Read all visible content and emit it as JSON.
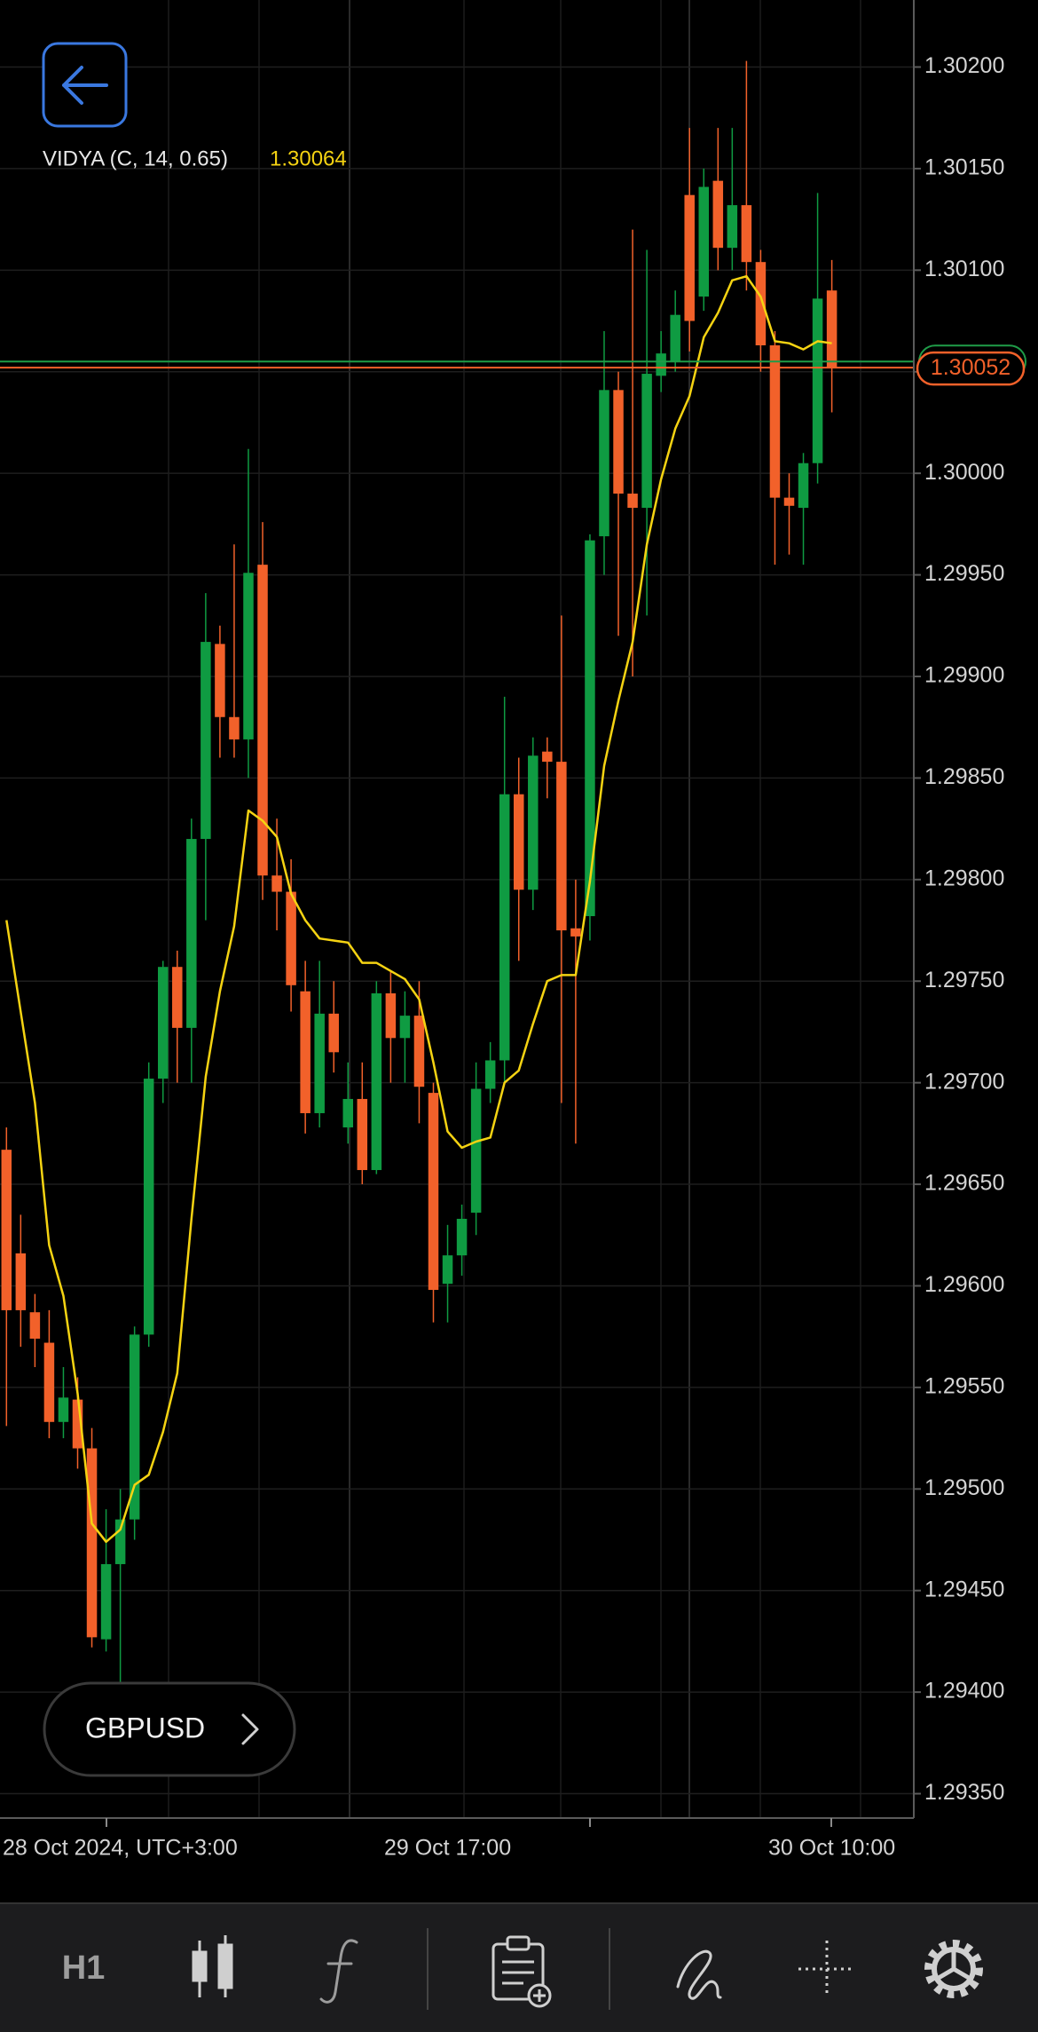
{
  "header": {
    "indicator_value": "1.30064"
  },
  "symbol_button": {
    "label": "GBPUSD"
  },
  "toolbar": {
    "timeframe": "H1"
  },
  "chart_data": {
    "type": "candlestick",
    "categories": [
      "28 Oct 2024, UTC+3:00",
      null,
      null,
      null,
      null,
      null,
      null,
      null,
      null,
      null,
      null,
      null,
      null,
      null,
      null,
      null,
      null,
      null,
      null,
      null,
      null,
      null,
      null,
      null,
      null,
      null,
      null,
      null,
      null,
      null,
      null,
      "29 Oct 17:00",
      null,
      null,
      null,
      null,
      null,
      null,
      null,
      null,
      null,
      null,
      null,
      null,
      null,
      null,
      null,
      null,
      null,
      null,
      null,
      null,
      null,
      null,
      null,
      null,
      null,
      null,
      "30 Oct 10:00"
    ],
    "open": [
      1.29667,
      1.29616,
      1.29587,
      1.29572,
      1.29533,
      1.29544,
      1.2952,
      1.29426,
      1.29463,
      1.29485,
      1.29576,
      1.29702,
      1.29757,
      1.29727,
      1.2982,
      1.29916,
      1.2988,
      1.29869,
      1.29955,
      1.29802,
      1.29794,
      1.29745,
      1.29685,
      1.29734,
      1.29678,
      1.29692,
      1.29657,
      1.29744,
      1.29722,
      1.29733,
      1.29695,
      1.29601,
      1.29615,
      1.29636,
      1.29697,
      1.29711,
      1.29842,
      1.29795,
      1.29863,
      1.29858,
      1.29776,
      1.29782,
      1.29969,
      1.30041,
      1.2999,
      1.29983,
      1.30048,
      1.30055,
      1.30137,
      1.30087,
      1.30144,
      1.30111,
      1.30132,
      1.30104,
      1.30063,
      1.29988,
      1.29983,
      1.30005,
      1.3009
    ],
    "high": [
      1.29678,
      1.29635,
      1.29596,
      1.29588,
      1.2956,
      1.29555,
      1.2953,
      1.2949,
      1.295,
      1.2958,
      1.2971,
      1.2976,
      1.29765,
      1.2983,
      1.29941,
      1.29925,
      1.29965,
      1.30012,
      1.29976,
      1.2983,
      1.2981,
      1.2976,
      1.2976,
      1.2975,
      1.2971,
      1.2971,
      1.2975,
      1.29755,
      1.29745,
      1.2975,
      1.297,
      1.2963,
      1.2964,
      1.2971,
      1.2972,
      1.2989,
      1.2986,
      1.2987,
      1.2987,
      1.2993,
      1.298,
      1.2997,
      1.3007,
      1.3005,
      1.3012,
      1.3011,
      1.3007,
      1.3009,
      1.3017,
      1.3015,
      1.3017,
      1.3017,
      1.30203,
      1.3011,
      1.3007,
      1.3,
      1.3001,
      1.30138,
      1.30105
    ],
    "low": [
      1.29531,
      1.2957,
      1.2956,
      1.29525,
      1.29525,
      1.2951,
      1.29422,
      1.2942,
      1.29395,
      1.29475,
      1.2957,
      1.2969,
      1.297,
      1.297,
      1.2978,
      1.2986,
      1.2986,
      1.2985,
      1.2979,
      1.29775,
      1.29735,
      1.29675,
      1.29678,
      1.29705,
      1.2967,
      1.2965,
      1.29655,
      1.297,
      1.297,
      1.2968,
      1.29582,
      1.29582,
      1.29605,
      1.29625,
      1.2969,
      1.297,
      1.2976,
      1.29785,
      1.2984,
      1.2969,
      1.2967,
      1.2977,
      1.2995,
      1.2992,
      1.299,
      1.2993,
      1.3004,
      1.3005,
      1.3006,
      1.3008,
      1.301,
      1.301,
      1.3009,
      1.3005,
      1.29955,
      1.2996,
      1.29955,
      1.29995,
      1.3003
    ],
    "close": [
      1.29588,
      1.29588,
      1.29574,
      1.29533,
      1.29545,
      1.2952,
      1.29427,
      1.29463,
      1.29485,
      1.29576,
      1.29702,
      1.29757,
      1.29727,
      1.2982,
      1.29917,
      1.2988,
      1.29869,
      1.29951,
      1.29802,
      1.29794,
      1.29748,
      1.29685,
      1.29734,
      1.29715,
      1.29692,
      1.29657,
      1.29744,
      1.29722,
      1.29733,
      1.29698,
      1.29598,
      1.29615,
      1.29633,
      1.29697,
      1.29711,
      1.29842,
      1.29795,
      1.29861,
      1.29858,
      1.29775,
      1.29772,
      1.29967,
      1.30041,
      1.2999,
      1.29983,
      1.30049,
      1.30059,
      1.30078,
      1.30075,
      1.30141,
      1.30111,
      1.30132,
      1.30104,
      1.30063,
      1.29988,
      1.29984,
      1.30005,
      1.30086,
      1.30052
    ],
    "up_color": "#0f9b42",
    "down_color": "#f2612a",
    "series": [
      {
        "name": "VIDYA (C, 14, 0.65)",
        "color": "#f5d312",
        "values": [
          1.2978,
          1.29735,
          1.2969,
          1.2962,
          1.29595,
          1.29547,
          1.29483,
          1.29474,
          1.2948,
          1.29502,
          1.29507,
          1.29528,
          1.29557,
          1.29633,
          1.29703,
          1.29745,
          1.29777,
          1.29834,
          1.29829,
          1.29821,
          1.29793,
          1.2978,
          1.29771,
          1.2977,
          1.29769,
          1.29759,
          1.29759,
          1.29755,
          1.29751,
          1.29741,
          1.2971,
          1.29676,
          1.29668,
          1.29671,
          1.29673,
          1.297,
          1.29706,
          1.29729,
          1.2975,
          1.29753,
          1.29753,
          1.29799,
          1.29856,
          1.29888,
          1.29917,
          1.29965,
          1.29997,
          1.30022,
          1.30038,
          1.30067,
          1.30079,
          1.30095,
          1.30097,
          1.30087,
          1.30065,
          1.30064,
          1.30061,
          1.30065,
          1.30064
        ]
      }
    ],
    "last_price": {
      "value": 1.30052,
      "label": "1.30052",
      "color": "#f2612a"
    },
    "ask_price": 1.30055,
    "ask_color": "#1f9c48",
    "ylim": [
      1.29338,
      1.30233
    ],
    "yticks": [
      {
        "value": 1.302,
        "label": "1.30200"
      },
      {
        "value": 1.3015,
        "label": "1.30150"
      },
      {
        "value": 1.301,
        "label": "1.30100"
      },
      {
        "value": 1.3005,
        "label": "1.30050"
      },
      {
        "value": 1.3,
        "label": "1.30000"
      },
      {
        "value": 1.2995,
        "label": "1.29950"
      },
      {
        "value": 1.299,
        "label": "1.29900"
      },
      {
        "value": 1.2985,
        "label": "1.29850"
      },
      {
        "value": 1.298,
        "label": "1.29800"
      },
      {
        "value": 1.2975,
        "label": "1.29750"
      },
      {
        "value": 1.297,
        "label": "1.29700"
      },
      {
        "value": 1.2965,
        "label": "1.29650"
      },
      {
        "value": 1.296,
        "label": "1.29600"
      },
      {
        "value": 1.2955,
        "label": "1.29550"
      },
      {
        "value": 1.295,
        "label": "1.29500"
      },
      {
        "value": 1.2945,
        "label": "1.29450"
      },
      {
        "value": 1.294,
        "label": "1.29400"
      },
      {
        "value": 1.2935,
        "label": "1.29350"
      }
    ],
    "grid": true
  }
}
